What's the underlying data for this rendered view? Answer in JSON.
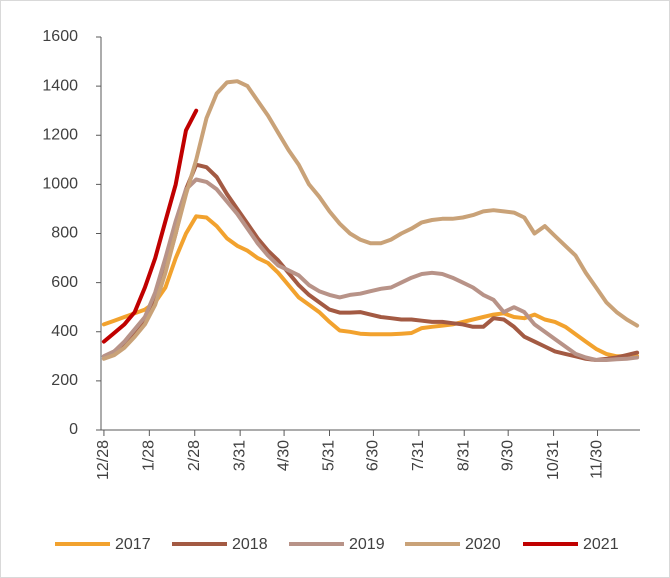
{
  "chart_data": {
    "type": "line",
    "x": [
      0,
      7,
      14,
      21,
      28,
      35,
      42,
      49,
      56,
      63,
      70,
      77,
      84,
      91,
      98,
      105,
      112,
      119,
      126,
      133,
      140,
      147,
      154,
      161,
      168,
      175,
      182,
      189,
      196,
      203,
      210,
      217,
      224,
      231,
      238,
      245,
      252,
      259,
      266,
      273,
      280,
      287,
      294,
      301,
      308,
      315,
      322,
      329,
      336,
      343,
      350,
      357,
      364
    ],
    "xlim": [
      -2,
      366
    ],
    "xticks": [
      {
        "value": 0,
        "label": "12/28"
      },
      {
        "value": 31,
        "label": "1/28"
      },
      {
        "value": 62,
        "label": "2/28"
      },
      {
        "value": 93,
        "label": "3/31"
      },
      {
        "value": 123,
        "label": "4/30"
      },
      {
        "value": 154,
        "label": "5/31"
      },
      {
        "value": 184,
        "label": "6/30"
      },
      {
        "value": 215,
        "label": "7/31"
      },
      {
        "value": 246,
        "label": "8/31"
      },
      {
        "value": 276,
        "label": "9/30"
      },
      {
        "value": 307,
        "label": "10/31"
      },
      {
        "value": 337,
        "label": "11/30"
      }
    ],
    "ylim": [
      0,
      1600
    ],
    "yticks": [
      0,
      200,
      400,
      600,
      800,
      1000,
      1200,
      1400,
      1600
    ],
    "legend": "bottom",
    "series": [
      {
        "name": "2017",
        "color": "#F2A22E",
        "values": [
          430,
          445,
          460,
          475,
          490,
          520,
          580,
          700,
          800,
          870,
          865,
          830,
          780,
          750,
          730,
          700,
          680,
          640,
          590,
          540,
          510,
          480,
          440,
          405,
          400,
          392,
          390,
          390,
          390,
          392,
          395,
          415,
          420,
          425,
          430,
          440,
          450,
          460,
          470,
          475,
          460,
          455,
          470,
          450,
          440,
          420,
          390,
          360,
          330,
          310,
          300,
          300,
          300
        ]
      },
      {
        "name": "2018",
        "color": "#A35A43",
        "values": [
          300,
          320,
          350,
          390,
          440,
          520,
          650,
          800,
          980,
          1080,
          1070,
          1030,
          960,
          900,
          840,
          780,
          730,
          690,
          640,
          590,
          550,
          520,
          490,
          478,
          478,
          480,
          470,
          460,
          455,
          450,
          450,
          445,
          440,
          440,
          435,
          430,
          420,
          420,
          455,
          450,
          420,
          380,
          360,
          340,
          320,
          310,
          300,
          290,
          285,
          290,
          295,
          305,
          315
        ]
      },
      {
        "name": "2019",
        "color": "#B89388",
        "values": [
          300,
          320,
          360,
          410,
          460,
          560,
          700,
          850,
          980,
          1020,
          1010,
          980,
          930,
          880,
          820,
          760,
          710,
          670,
          650,
          630,
          590,
          565,
          550,
          540,
          550,
          555,
          565,
          575,
          580,
          600,
          620,
          635,
          640,
          635,
          620,
          600,
          580,
          550,
          530,
          480,
          500,
          480,
          430,
          400,
          370,
          340,
          310,
          295,
          285,
          285,
          288,
          290,
          295
        ]
      },
      {
        "name": "2020",
        "color": "#C9A278",
        "values": [
          290,
          305,
          335,
          380,
          430,
          510,
          640,
          800,
          960,
          1100,
          1270,
          1370,
          1415,
          1420,
          1400,
          1340,
          1280,
          1210,
          1140,
          1080,
          1000,
          950,
          890,
          840,
          800,
          775,
          760,
          760,
          775,
          800,
          820,
          845,
          855,
          860,
          860,
          865,
          875,
          890,
          895,
          890,
          885,
          865,
          800,
          830,
          790,
          750,
          710,
          640,
          580,
          520,
          480,
          450,
          425
        ]
      },
      {
        "name": "2021",
        "color": "#C00000",
        "values": [
          360,
          395,
          430,
          480,
          580,
          700,
          850,
          1000,
          1220,
          1300,
          null,
          null,
          null,
          null,
          null,
          null,
          null,
          null,
          null,
          null,
          null,
          null,
          null,
          null,
          null,
          null,
          null,
          null,
          null,
          null,
          null,
          null,
          null,
          null,
          null,
          null,
          null,
          null,
          null,
          null,
          null,
          null,
          null,
          null,
          null,
          null,
          null,
          null,
          null,
          null,
          null,
          null,
          null
        ]
      }
    ]
  }
}
